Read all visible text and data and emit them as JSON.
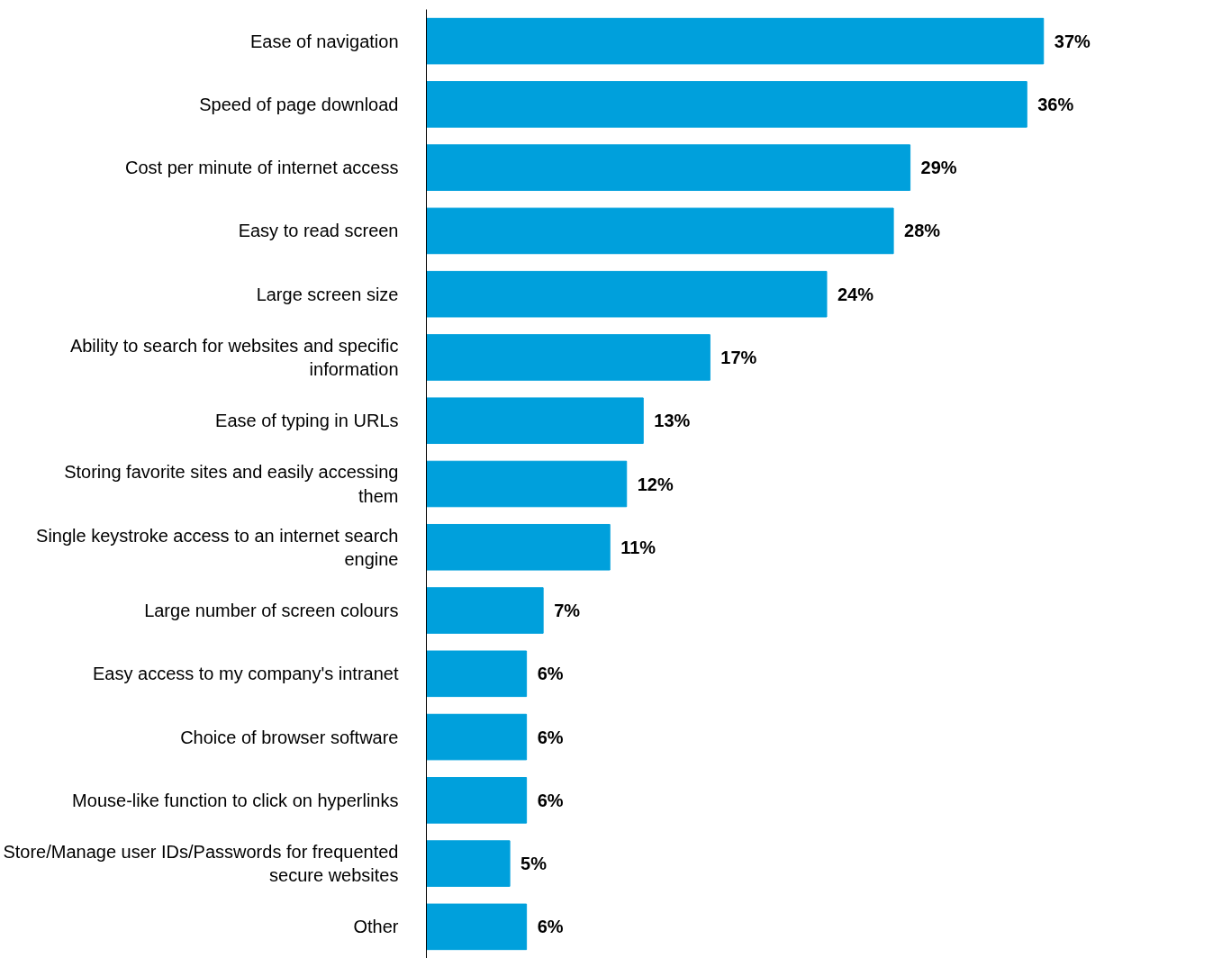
{
  "chart_data": {
    "type": "bar",
    "orientation": "horizontal",
    "categories": [
      "Ease of navigation",
      "Speed of page download",
      "Cost per minute of internet access",
      "Easy to read screen",
      "Large screen size",
      "Ability to search for websites and specific information",
      "Ease of typing in URLs",
      "Storing favorite sites and easily accessing them",
      "Single keystroke access to an internet search engine",
      "Large number of screen colours",
      "Easy access to my company's intranet",
      "Choice of browser software",
      "Mouse-like function to click on hyperlinks",
      "Store/Manage user IDs/Passwords for frequented secure websites",
      "Other"
    ],
    "values": [
      37,
      36,
      29,
      28,
      24,
      17,
      13,
      12,
      11,
      7,
      6,
      6,
      6,
      5,
      6
    ],
    "value_labels": [
      "37%",
      "36%",
      "29%",
      "28%",
      "24%",
      "17%",
      "13%",
      "12%",
      "11%",
      "7%",
      "6%",
      "6%",
      "6%",
      "5%",
      "6%"
    ],
    "color": "#00a0dc"
  }
}
